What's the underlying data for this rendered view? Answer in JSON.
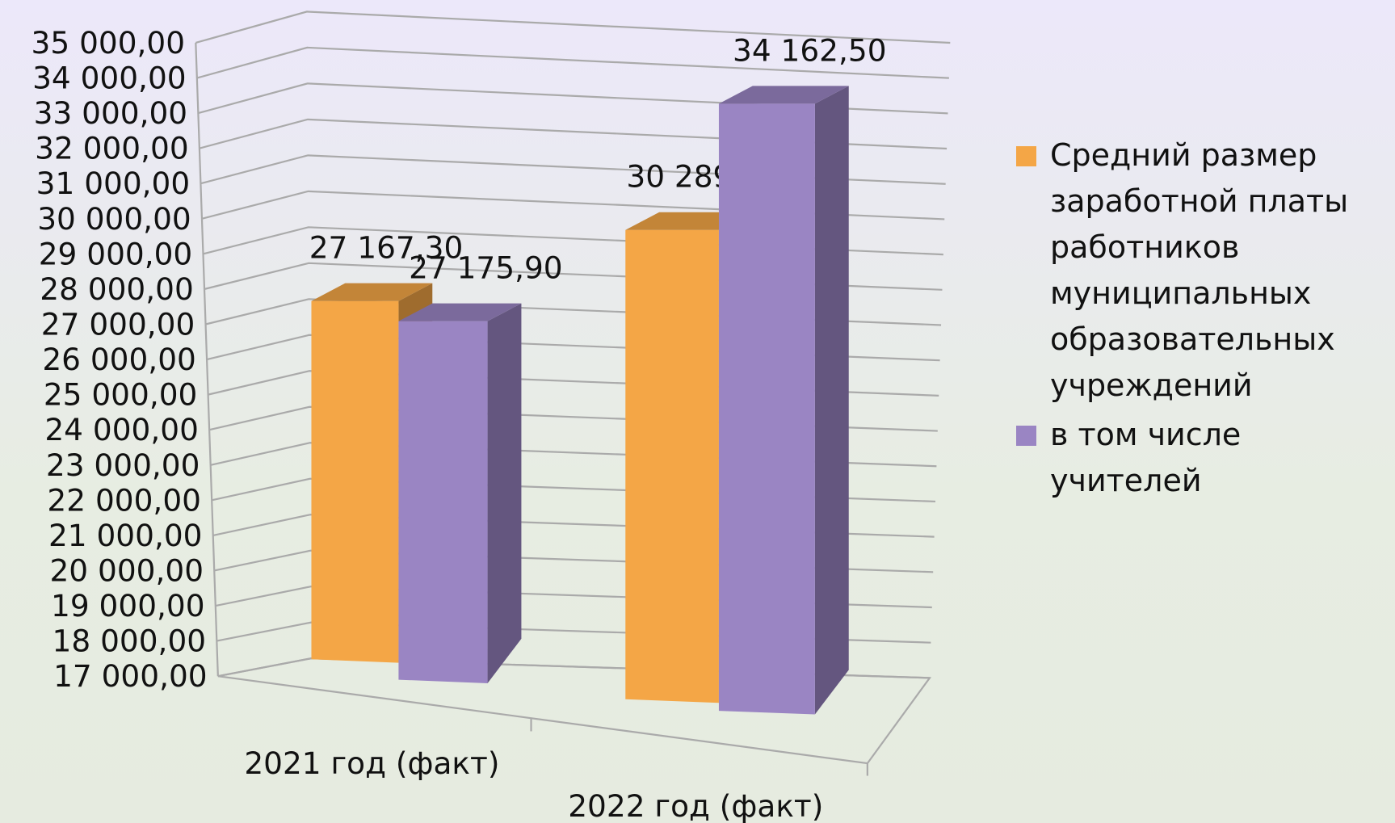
{
  "chart_data": {
    "type": "bar3d",
    "categories": [
      "2021 год (факт)",
      "2022 год (факт)"
    ],
    "series": [
      {
        "name": "Средний размер заработной платы работников муниципальных образовательных учреждений",
        "color": "#f4a646",
        "values": [
          27167.3,
          30289.6
        ],
        "value_labels": [
          "27 167,30",
          "30 289,60"
        ]
      },
      {
        "name": "в том числе учителей",
        "color": "#9a85c3",
        "values": [
          27175.9,
          34162.5
        ],
        "value_labels": [
          "27 175,90",
          "34 162,50"
        ]
      }
    ],
    "ylim": [
      17000,
      35000
    ],
    "yticks": [
      {
        "value": 17000,
        "label": "17 000,00"
      },
      {
        "value": 18000,
        "label": "18 000,00"
      },
      {
        "value": 19000,
        "label": "19 000,00"
      },
      {
        "value": 20000,
        "label": "20 000,00"
      },
      {
        "value": 21000,
        "label": "21 000,00"
      },
      {
        "value": 22000,
        "label": "22 000,00"
      },
      {
        "value": 23000,
        "label": "23 000,00"
      },
      {
        "value": 24000,
        "label": "24 000,00"
      },
      {
        "value": 25000,
        "label": "25 000,00"
      },
      {
        "value": 26000,
        "label": "26 000,00"
      },
      {
        "value": 27000,
        "label": "27 000,00"
      },
      {
        "value": 28000,
        "label": "28 000,00"
      },
      {
        "value": 29000,
        "label": "29 000,00"
      },
      {
        "value": 30000,
        "label": "30 000,00"
      },
      {
        "value": 31000,
        "label": "31 000,00"
      },
      {
        "value": 32000,
        "label": "32 000,00"
      },
      {
        "value": 33000,
        "label": "33 000,00"
      },
      {
        "value": 34000,
        "label": "34 000,00"
      },
      {
        "value": 35000,
        "label": "35 000,00"
      }
    ],
    "grid": true,
    "legend": "right"
  }
}
